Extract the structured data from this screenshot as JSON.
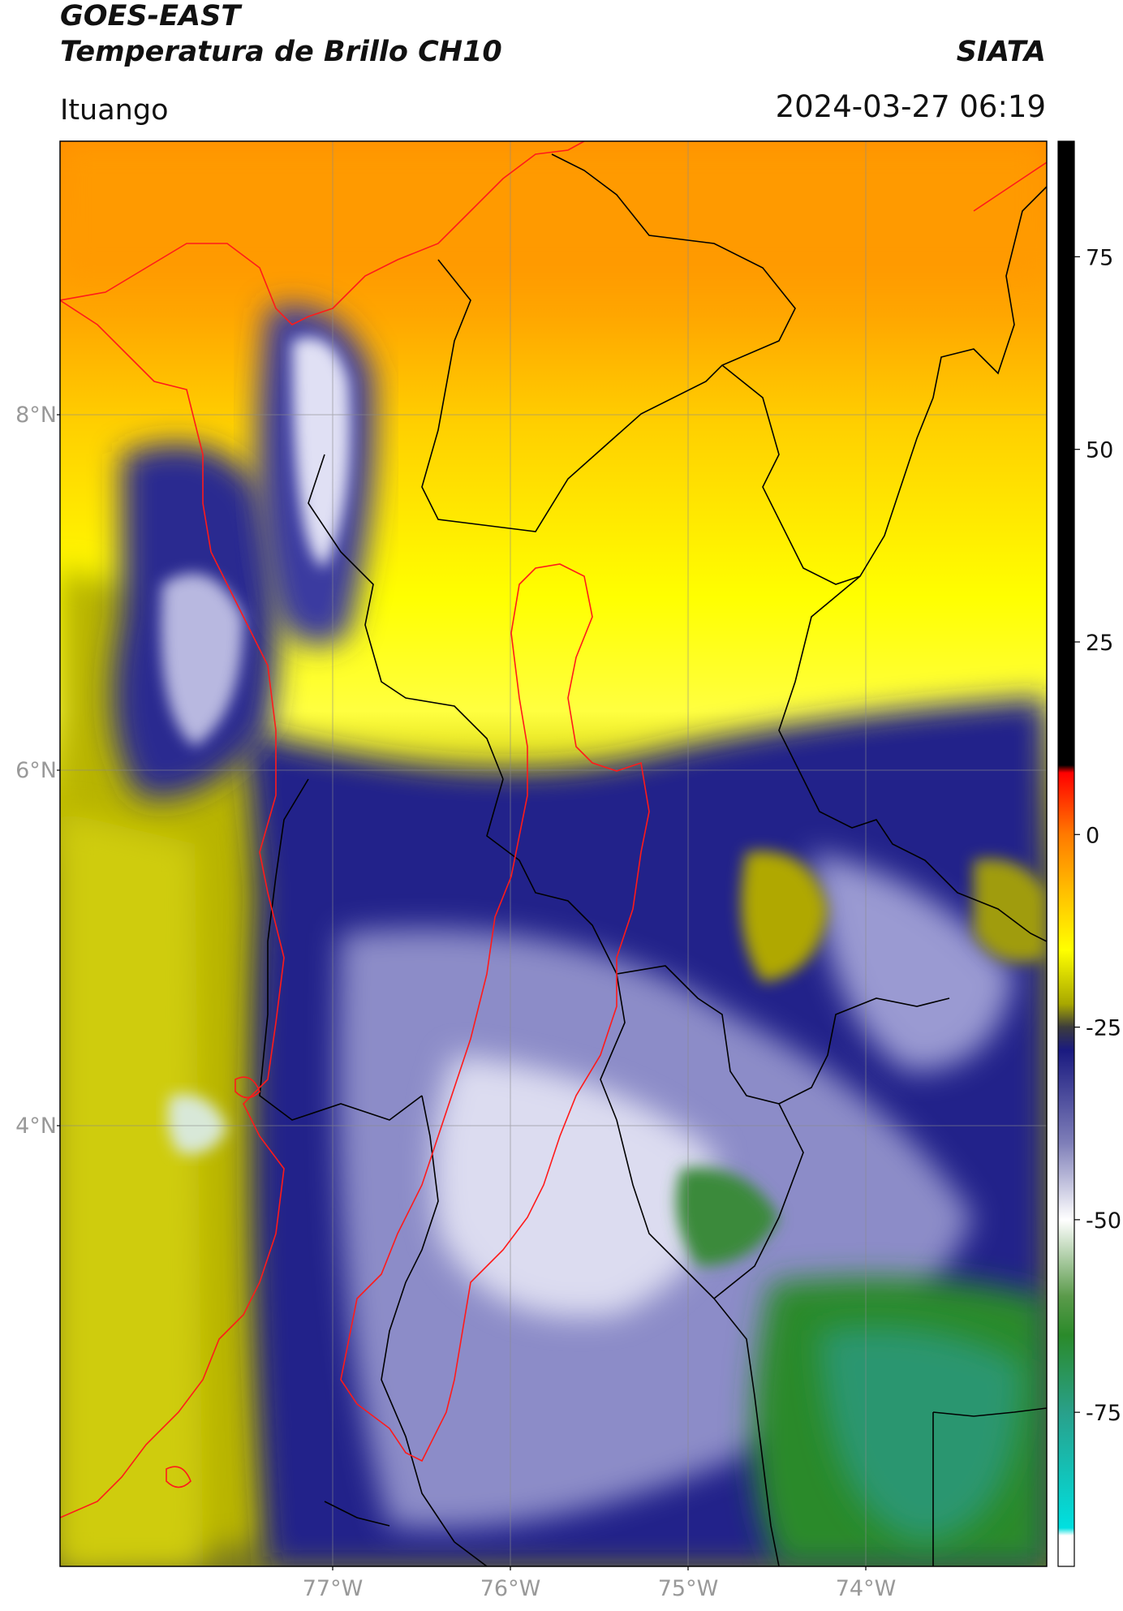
{
  "header": {
    "satellite": "GOES-EAST",
    "product": "Temperatura de Brillo CH10",
    "brand": "SIATA",
    "region": "Ituango",
    "timestamp": "2024-03-27 06:19"
  },
  "map": {
    "lat_labels": [
      "8°N",
      "6°N",
      "4°N"
    ],
    "lon_labels": [
      "77°W",
      "76°W",
      "75°W",
      "74°W"
    ]
  },
  "colorbar": {
    "tick_labels": [
      "75",
      "50",
      "25",
      "0",
      "-25",
      "-50",
      "-75"
    ],
    "tick_values": [
      75,
      50,
      25,
      0,
      -25,
      -50,
      -75
    ],
    "range": [
      -95,
      90
    ],
    "stops": [
      {
        "value": 90,
        "color": "#000000"
      },
      {
        "value": 9,
        "color": "#000000"
      },
      {
        "value": 8,
        "color": "#ff0000"
      },
      {
        "value": 0,
        "color": "#ff7a00"
      },
      {
        "value": -8,
        "color": "#ffc400"
      },
      {
        "value": -15,
        "color": "#ffff00"
      },
      {
        "value": -22,
        "color": "#a8a800"
      },
      {
        "value": -25,
        "color": "#3c3c3c"
      },
      {
        "value": -28,
        "color": "#1a1a80"
      },
      {
        "value": -40,
        "color": "#7e7eb8"
      },
      {
        "value": -50,
        "color": "#ffffff"
      },
      {
        "value": -60,
        "color": "#5a9a4a"
      },
      {
        "value": -65,
        "color": "#2a8a2a"
      },
      {
        "value": -75,
        "color": "#29a08a"
      },
      {
        "value": -90,
        "color": "#00e0e0"
      },
      {
        "value": -91,
        "color": "#ffffff"
      },
      {
        "value": -95,
        "color": "#ffffff"
      }
    ]
  },
  "colors": {
    "boundary_red": "#ff1a1a",
    "boundary_black": "#000000",
    "grid": "#8a8a8a"
  }
}
